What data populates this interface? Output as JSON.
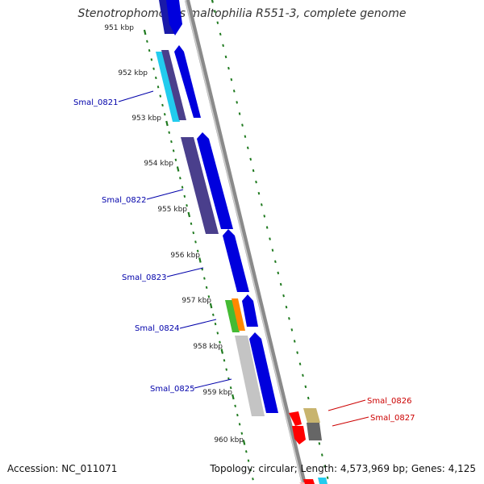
{
  "title": "Stenotrophomonas maltophilia R551-3, complete genome",
  "accession_text": "Accession: NC_011071",
  "topology_text": "Topology: circular; Length: 4,573,969 bp; Genes: 4,125",
  "ruler_labels": [
    "951 kbp",
    "952 kbp",
    "953 kbp",
    "954 kbp",
    "955 kbp",
    "956 kbp",
    "957 kbp",
    "958 kbp",
    "959 kbp",
    "960 kbp"
  ],
  "gene_labels": [
    {
      "text": "Smal_0821",
      "color": "#0000aa"
    },
    {
      "text": "Smal_0822",
      "color": "#0000aa"
    },
    {
      "text": "Smal_0823",
      "color": "#0000aa"
    },
    {
      "text": "Smal_0824",
      "color": "#0000aa"
    },
    {
      "text": "Smal_0825",
      "color": "#0000aa"
    },
    {
      "text": "Smal_0826",
      "color": "#cc0000"
    },
    {
      "text": "Smal_0827",
      "color": "#cc0000"
    }
  ],
  "colors": {
    "backbone": "#8a8a8a",
    "ticks": "#1f7a1f",
    "cds_forward": "#0000dd",
    "cds_reverse": "#ff0000",
    "cog_purple": "#4a3f8c",
    "cog_cyan": "#22ccee",
    "cog_green": "#44bb33",
    "cog_orange": "#ff8800",
    "cog_gray": "#c4c4c4",
    "cog_tan": "#c8b46e",
    "cog_dark": "#666666",
    "cog_pink": "#ffb3b3"
  }
}
